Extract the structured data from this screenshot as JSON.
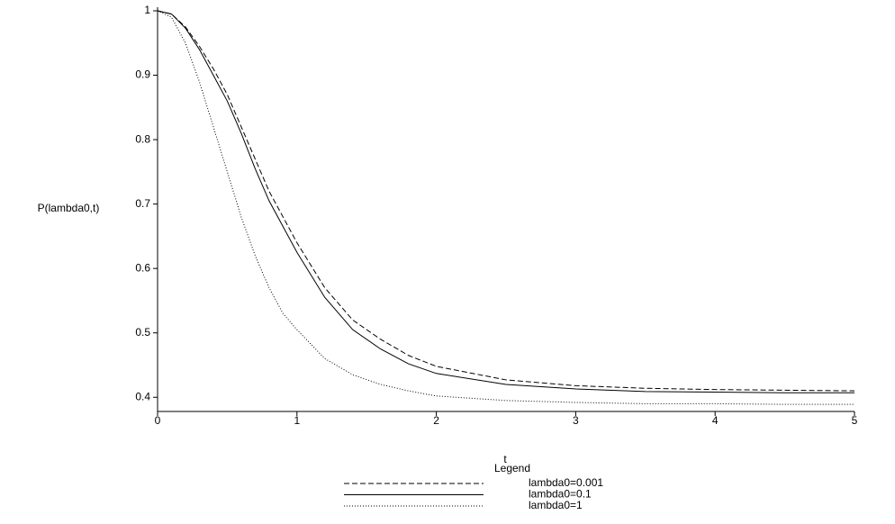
{
  "chart_data": {
    "type": "line",
    "x_label": "t",
    "y_label": "P(lambda0,t)",
    "legend_title": "Legend",
    "x": [
      0,
      0.1,
      0.2,
      0.3,
      0.4,
      0.5,
      0.6,
      0.7,
      0.8,
      0.9,
      1.0,
      1.2,
      1.4,
      1.6,
      1.8,
      2.0,
      2.5,
      3,
      3.5,
      4,
      4.5,
      5
    ],
    "series": [
      {
        "name": "lambda0=0.001",
        "color": "#000000",
        "dash": "dashed",
        "values": [
          1,
          0.995,
          0.975,
          0.945,
          0.91,
          0.87,
          0.82,
          0.77,
          0.72,
          0.68,
          0.64,
          0.57,
          0.52,
          0.49,
          0.465,
          0.448,
          0.427,
          0.418,
          0.414,
          0.412,
          0.411,
          0.41
        ]
      },
      {
        "name": "lambda0=0.1",
        "color": "#000000",
        "dash": "solid",
        "values": [
          1,
          0.995,
          0.973,
          0.94,
          0.9,
          0.86,
          0.81,
          0.755,
          0.705,
          0.665,
          0.625,
          0.555,
          0.505,
          0.475,
          0.452,
          0.437,
          0.42,
          0.413,
          0.409,
          0.408,
          0.407,
          0.407
        ]
      },
      {
        "name": "lambda0=1",
        "color": "#000000",
        "dash": "dotted",
        "values": [
          1,
          0.99,
          0.95,
          0.89,
          0.82,
          0.75,
          0.68,
          0.62,
          0.57,
          0.53,
          0.505,
          0.46,
          0.435,
          0.42,
          0.41,
          0.402,
          0.395,
          0.392,
          0.39,
          0.39,
          0.389,
          0.389
        ]
      }
    ],
    "xlim": [
      0,
      5
    ],
    "xticks": [
      0,
      1,
      2,
      3,
      4,
      5
    ],
    "ylim": [
      0.378,
      1
    ],
    "yticks": [
      0.4,
      0.5,
      0.6,
      0.7,
      0.8,
      0.9,
      1
    ],
    "grid": false
  }
}
